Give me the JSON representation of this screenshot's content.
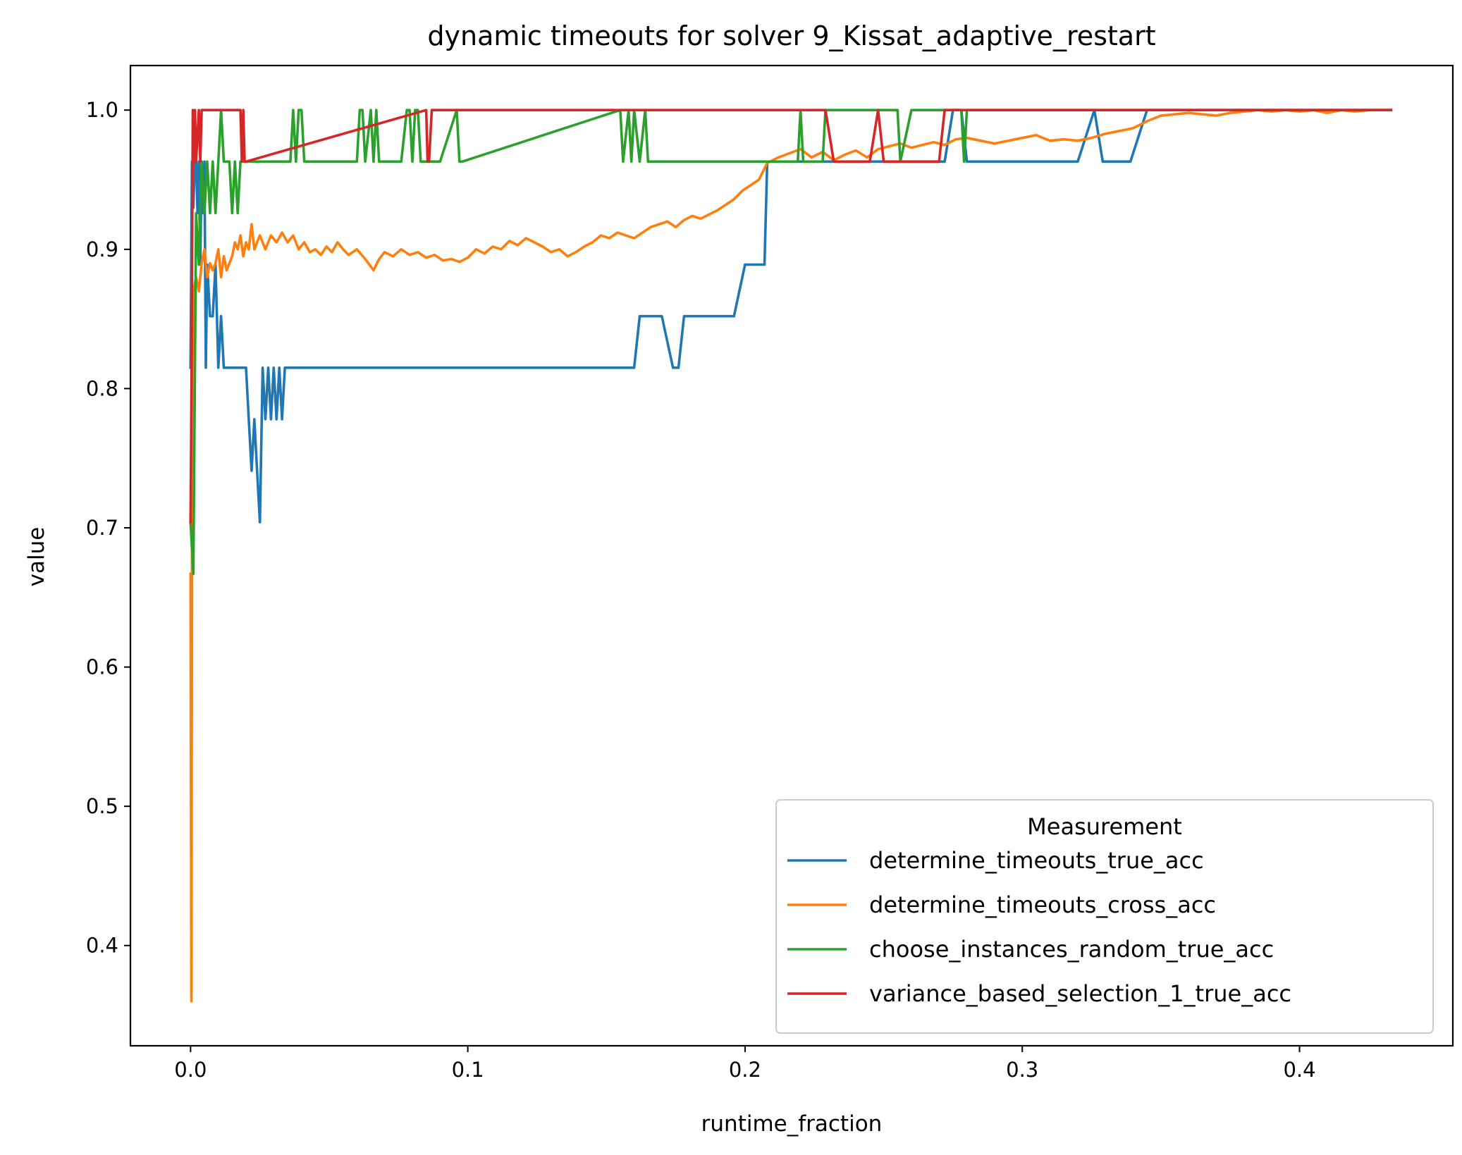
{
  "chart_data": {
    "type": "line",
    "title": "dynamic timeouts for solver 9_Kissat_adaptive_restart",
    "xlabel": "runtime_fraction",
    "ylabel": "value",
    "xlim": [
      -0.0217,
      0.4553
    ],
    "ylim": [
      0.328,
      1.032
    ],
    "xticks": [
      0.0,
      0.1,
      0.2,
      0.3,
      0.4
    ],
    "xtick_labels": [
      "0.0",
      "0.1",
      "0.2",
      "0.3",
      "0.4"
    ],
    "yticks": [
      0.4,
      0.5,
      0.6,
      0.7,
      0.8,
      0.9,
      1.0
    ],
    "ytick_labels": [
      "0.4",
      "0.5",
      "0.6",
      "0.7",
      "0.8",
      "0.9",
      "1.0"
    ],
    "grid": false,
    "legend": {
      "title": "Measurement",
      "placement": "lower right"
    },
    "series": [
      {
        "name": "determine_timeouts_true_acc",
        "color": "#1f77b4",
        "x": [
          0.0,
          0.0005,
          0.001,
          0.0015,
          0.002,
          0.0025,
          0.003,
          0.0035,
          0.004,
          0.0045,
          0.005,
          0.0055,
          0.006,
          0.007,
          0.008,
          0.009,
          0.01,
          0.011,
          0.012,
          0.013,
          0.014,
          0.02,
          0.021,
          0.022,
          0.023,
          0.024,
          0.025,
          0.026,
          0.027,
          0.028,
          0.029,
          0.03,
          0.031,
          0.032,
          0.033,
          0.034,
          0.16,
          0.162,
          0.17,
          0.174,
          0.176,
          0.178,
          0.196,
          0.2,
          0.207,
          0.208,
          0.22,
          0.23,
          0.272,
          0.275,
          0.278,
          0.28,
          0.284,
          0.32,
          0.326,
          0.329,
          0.339,
          0.345,
          0.35,
          0.433
        ],
        "y": [
          0.815,
          0.963,
          0.93,
          0.963,
          0.963,
          0.926,
          0.963,
          0.889,
          0.963,
          0.926,
          0.963,
          0.815,
          0.889,
          0.852,
          0.852,
          0.889,
          0.815,
          0.852,
          0.815,
          0.815,
          0.815,
          0.815,
          0.778,
          0.741,
          0.778,
          0.741,
          0.704,
          0.815,
          0.778,
          0.815,
          0.778,
          0.815,
          0.778,
          0.815,
          0.778,
          0.815,
          0.815,
          0.852,
          0.852,
          0.815,
          0.815,
          0.852,
          0.852,
          0.889,
          0.889,
          0.963,
          0.963,
          0.963,
          0.963,
          1.0,
          1.0,
          0.963,
          0.963,
          0.963,
          1.0,
          0.963,
          0.963,
          1.0,
          1.0,
          1.0
        ]
      },
      {
        "name": "determine_timeouts_cross_acc",
        "color": "#ff7f0e",
        "x": [
          0.0,
          0.0003,
          0.0006,
          0.001,
          0.002,
          0.003,
          0.004,
          0.005,
          0.006,
          0.007,
          0.008,
          0.009,
          0.01,
          0.011,
          0.012,
          0.013,
          0.014,
          0.015,
          0.016,
          0.017,
          0.018,
          0.019,
          0.02,
          0.021,
          0.022,
          0.023,
          0.024,
          0.025,
          0.027,
          0.029,
          0.031,
          0.033,
          0.035,
          0.037,
          0.039,
          0.041,
          0.043,
          0.045,
          0.047,
          0.049,
          0.051,
          0.053,
          0.055,
          0.057,
          0.06,
          0.063,
          0.066,
          0.068,
          0.07,
          0.073,
          0.076,
          0.079,
          0.082,
          0.085,
          0.088,
          0.091,
          0.094,
          0.097,
          0.1,
          0.103,
          0.106,
          0.109,
          0.112,
          0.115,
          0.118,
          0.121,
          0.124,
          0.127,
          0.13,
          0.133,
          0.136,
          0.139,
          0.142,
          0.145,
          0.148,
          0.151,
          0.154,
          0.157,
          0.16,
          0.163,
          0.166,
          0.169,
          0.172,
          0.175,
          0.178,
          0.181,
          0.184,
          0.187,
          0.19,
          0.193,
          0.196,
          0.199,
          0.202,
          0.205,
          0.208,
          0.212,
          0.216,
          0.22,
          0.224,
          0.228,
          0.232,
          0.236,
          0.24,
          0.244,
          0.248,
          0.252,
          0.256,
          0.26,
          0.264,
          0.268,
          0.272,
          0.276,
          0.28,
          0.285,
          0.29,
          0.295,
          0.3,
          0.305,
          0.31,
          0.315,
          0.32,
          0.325,
          0.33,
          0.335,
          0.34,
          0.345,
          0.35,
          0.355,
          0.36,
          0.365,
          0.37,
          0.375,
          0.38,
          0.385,
          0.39,
          0.395,
          0.4,
          0.405,
          0.41,
          0.415,
          0.42,
          0.425,
          0.433
        ],
        "y": [
          0.667,
          0.36,
          0.8,
          0.87,
          0.88,
          0.87,
          0.89,
          0.9,
          0.88,
          0.89,
          0.885,
          0.89,
          0.9,
          0.88,
          0.895,
          0.885,
          0.89,
          0.895,
          0.905,
          0.9,
          0.91,
          0.895,
          0.905,
          0.9,
          0.918,
          0.9,
          0.905,
          0.91,
          0.9,
          0.91,
          0.905,
          0.912,
          0.905,
          0.91,
          0.9,
          0.905,
          0.898,
          0.9,
          0.896,
          0.902,
          0.898,
          0.905,
          0.9,
          0.896,
          0.9,
          0.893,
          0.885,
          0.893,
          0.898,
          0.895,
          0.9,
          0.896,
          0.898,
          0.894,
          0.896,
          0.892,
          0.893,
          0.891,
          0.894,
          0.9,
          0.897,
          0.902,
          0.9,
          0.906,
          0.903,
          0.908,
          0.905,
          0.902,
          0.898,
          0.9,
          0.895,
          0.898,
          0.902,
          0.905,
          0.91,
          0.908,
          0.912,
          0.91,
          0.908,
          0.912,
          0.916,
          0.918,
          0.92,
          0.916,
          0.921,
          0.924,
          0.922,
          0.925,
          0.928,
          0.932,
          0.936,
          0.942,
          0.946,
          0.95,
          0.962,
          0.966,
          0.969,
          0.972,
          0.966,
          0.97,
          0.964,
          0.968,
          0.971,
          0.966,
          0.972,
          0.974,
          0.976,
          0.973,
          0.975,
          0.977,
          0.975,
          0.979,
          0.98,
          0.978,
          0.976,
          0.978,
          0.98,
          0.982,
          0.978,
          0.979,
          0.978,
          0.98,
          0.983,
          0.985,
          0.987,
          0.992,
          0.996,
          0.997,
          0.998,
          0.997,
          0.996,
          0.998,
          0.999,
          1.0,
          0.999,
          1.0,
          0.999,
          1.0,
          0.998,
          1.0,
          0.999,
          1.0,
          1.0
        ]
      },
      {
        "name": "choose_instances_random_true_acc",
        "color": "#2ca02c",
        "x": [
          0.0,
          0.001,
          0.002,
          0.003,
          0.004,
          0.005,
          0.006,
          0.007,
          0.008,
          0.009,
          0.01,
          0.011,
          0.012,
          0.013,
          0.014,
          0.015,
          0.016,
          0.017,
          0.018,
          0.036,
          0.037,
          0.038,
          0.039,
          0.04,
          0.041,
          0.06,
          0.061,
          0.062,
          0.063,
          0.065,
          0.066,
          0.067,
          0.068,
          0.069,
          0.07,
          0.076,
          0.078,
          0.079,
          0.08,
          0.081,
          0.082,
          0.083,
          0.09,
          0.096,
          0.097,
          0.098,
          0.155,
          0.156,
          0.158,
          0.159,
          0.16,
          0.162,
          0.164,
          0.165,
          0.219,
          0.22,
          0.221,
          0.228,
          0.229,
          0.23,
          0.255,
          0.256,
          0.26,
          0.278,
          0.279,
          0.28,
          0.281,
          0.433
        ],
        "y": [
          0.704,
          0.667,
          0.926,
          0.889,
          0.963,
          0.926,
          0.963,
          0.926,
          0.963,
          0.926,
          0.963,
          1.0,
          0.963,
          0.963,
          0.963,
          0.926,
          0.963,
          0.926,
          0.963,
          0.963,
          1.0,
          0.963,
          1.0,
          1.0,
          0.963,
          0.963,
          1.0,
          1.0,
          0.963,
          1.0,
          0.963,
          1.0,
          0.963,
          0.963,
          0.963,
          0.963,
          1.0,
          1.0,
          0.963,
          1.0,
          1.0,
          0.963,
          0.963,
          1.0,
          0.963,
          0.963,
          1.0,
          0.963,
          1.0,
          0.963,
          1.0,
          0.963,
          1.0,
          0.963,
          0.963,
          1.0,
          0.963,
          0.963,
          1.0,
          1.0,
          1.0,
          0.963,
          1.0,
          1.0,
          0.963,
          1.0,
          1.0,
          1.0
        ]
      },
      {
        "name": "variance_based_selection_1_true_acc",
        "color": "#d62728",
        "x": [
          0.0,
          0.0004,
          0.0008,
          0.0012,
          0.0016,
          0.002,
          0.003,
          0.0035,
          0.004,
          0.018,
          0.0185,
          0.019,
          0.0195,
          0.02,
          0.085,
          0.0855,
          0.086,
          0.087,
          0.088,
          0.229,
          0.232,
          0.245,
          0.248,
          0.25,
          0.252,
          0.27,
          0.272,
          0.433
        ],
        "y": [
          0.704,
          0.82,
          1.0,
          0.963,
          1.0,
          0.963,
          1.0,
          0.963,
          1.0,
          1.0,
          0.963,
          1.0,
          0.963,
          0.963,
          1.0,
          0.963,
          0.963,
          1.0,
          1.0,
          1.0,
          0.963,
          0.963,
          1.0,
          0.963,
          0.963,
          0.963,
          1.0,
          1.0
        ]
      }
    ]
  }
}
